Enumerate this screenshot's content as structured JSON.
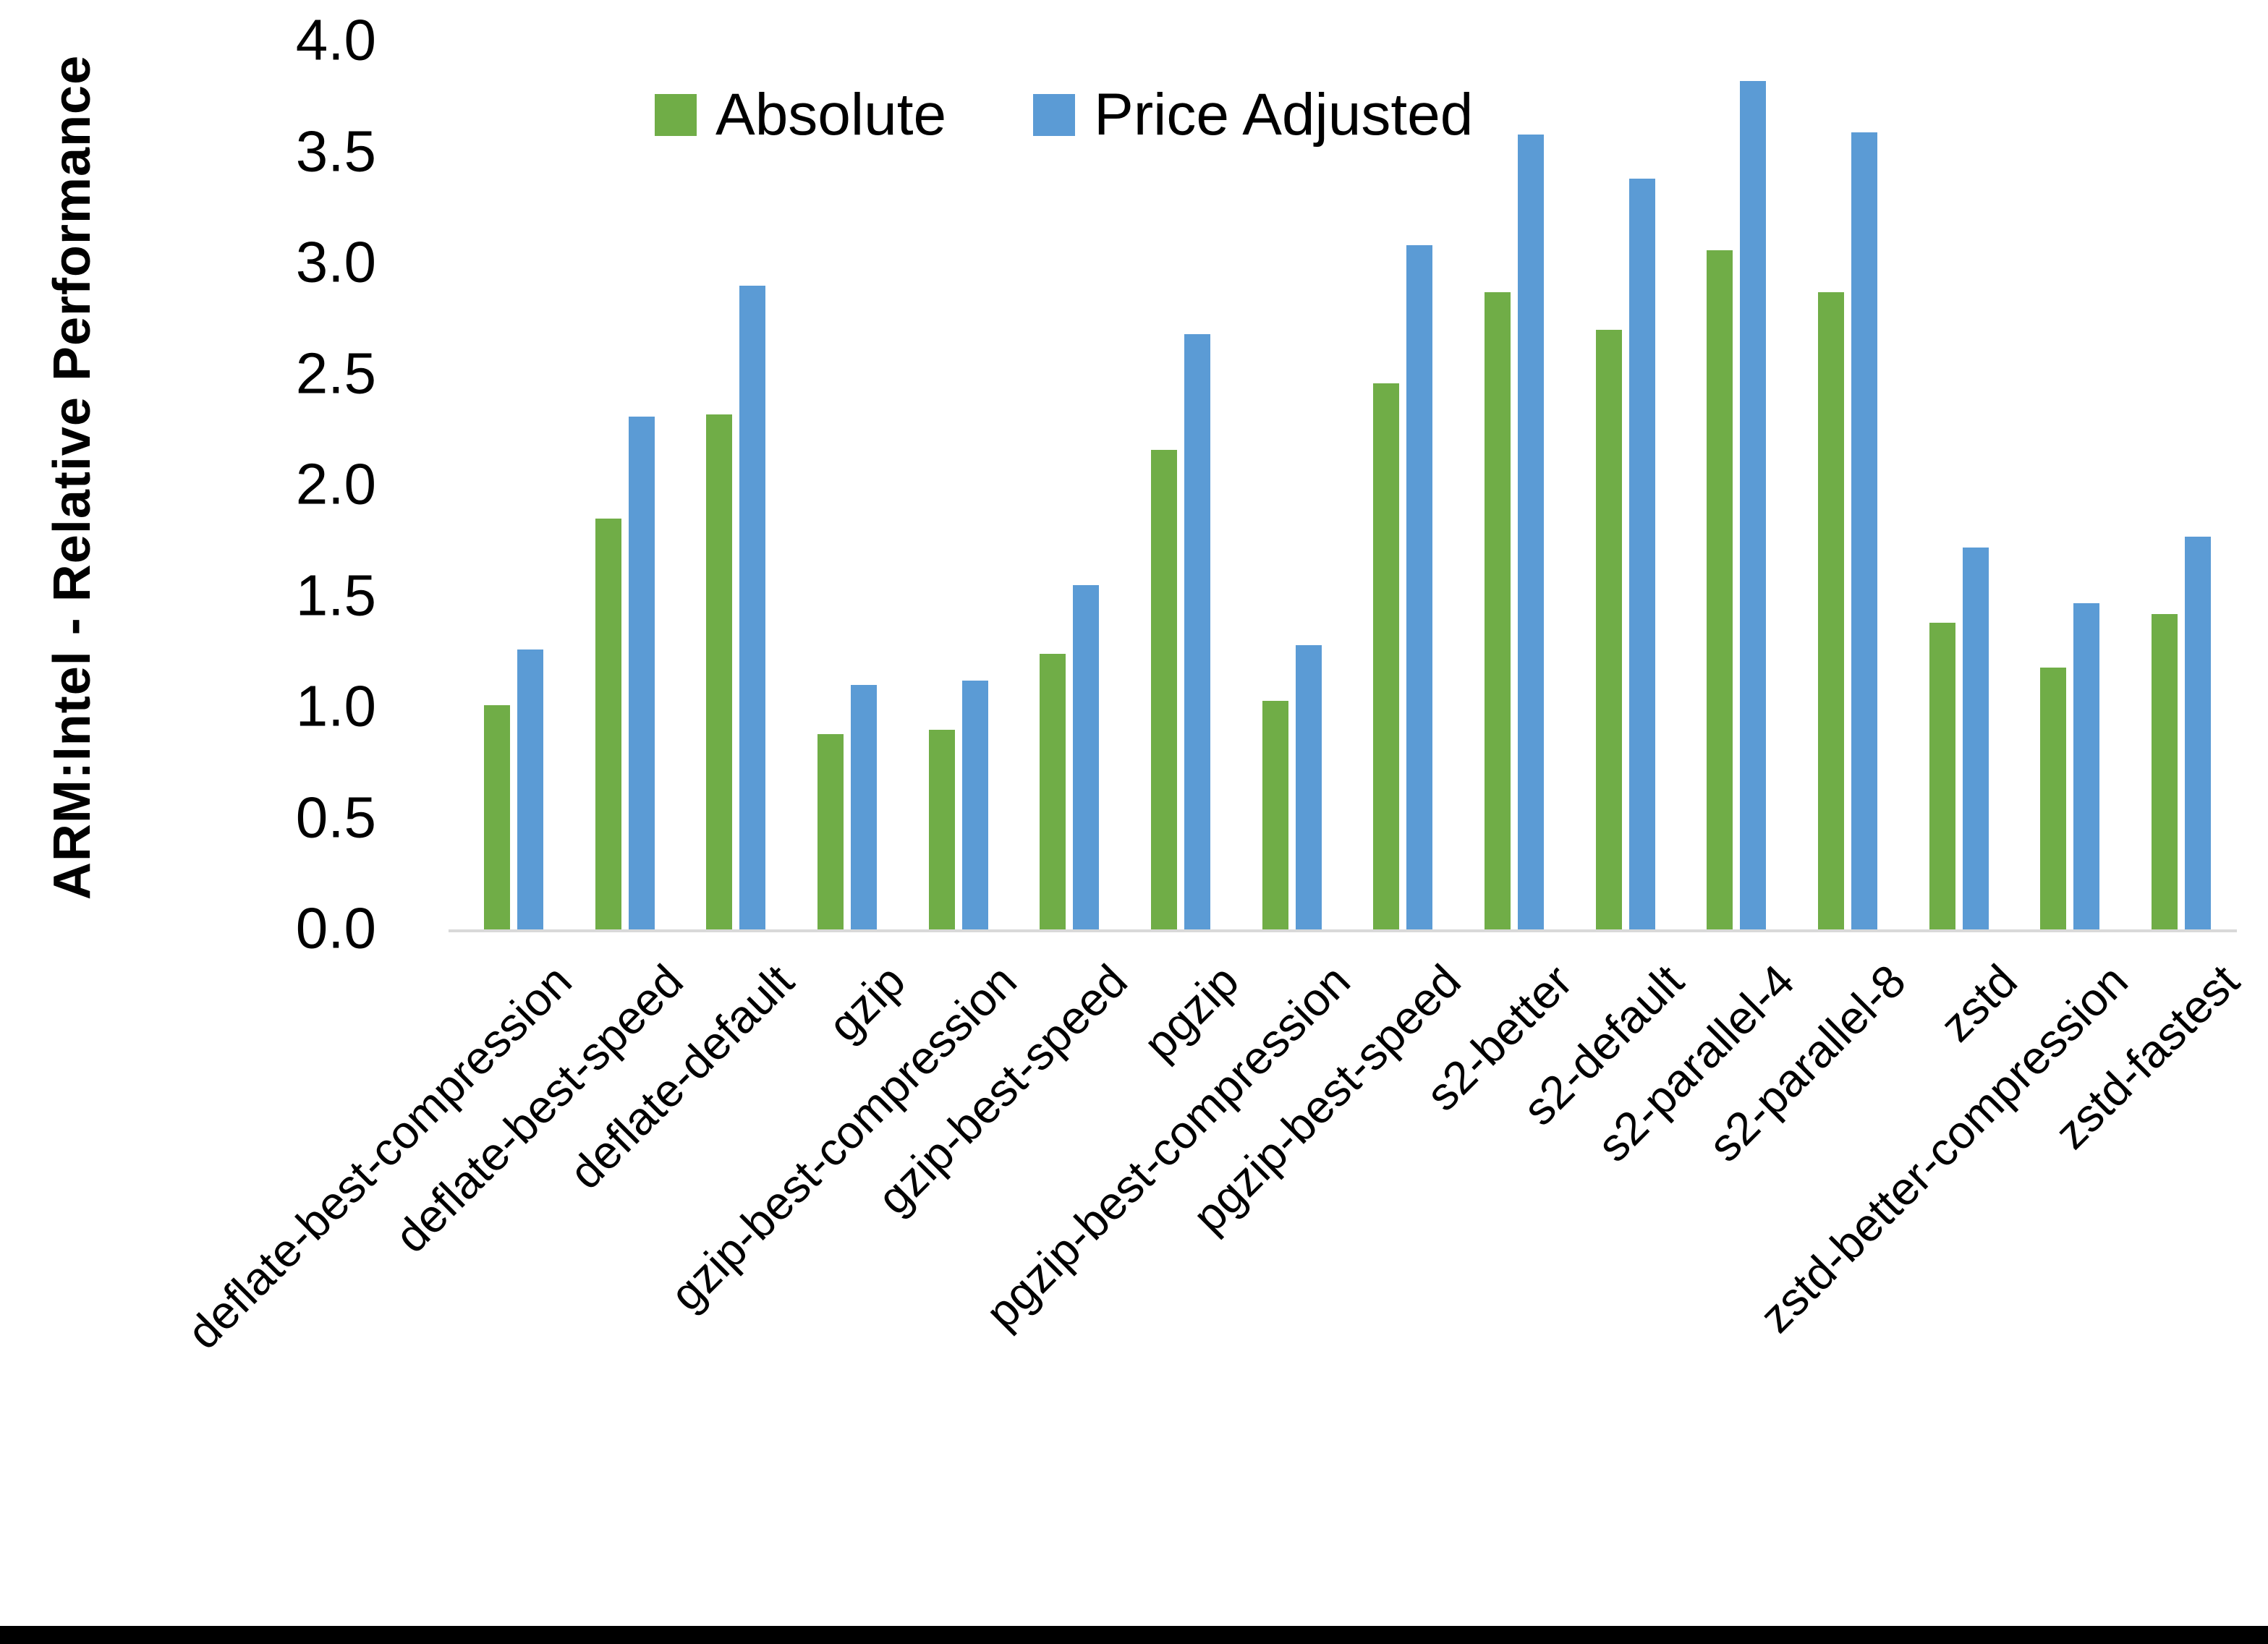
{
  "chart_data": {
    "type": "bar",
    "title": "",
    "ylabel": "ARM:Intel - Relative Performance",
    "xlabel": "",
    "ylim": [
      0.0,
      4.0
    ],
    "ytick_step": 0.5,
    "yticks": [
      "0.0",
      "0.5",
      "1.0",
      "1.5",
      "2.0",
      "2.5",
      "3.0",
      "3.5",
      "4.0"
    ],
    "grid": false,
    "legend_position": "top-center",
    "categories": [
      "deflate-best-compression",
      "deflate-best-speed",
      "deflate-default",
      "gzip",
      "gzip-best-compression",
      "gzip-best-speed",
      "pgzip",
      "pgzip-best-compression",
      "pgzip-best-speed",
      "s2-better",
      "s2-default",
      "s2-parallel-4",
      "s2-parallel-8",
      "zstd",
      "zstd-better-compression",
      "zstd-fastest"
    ],
    "series": [
      {
        "name": "Absolute",
        "color": "#70AD47",
        "values": [
          1.01,
          1.85,
          2.32,
          0.88,
          0.9,
          1.24,
          2.16,
          1.03,
          2.46,
          2.87,
          2.7,
          3.06,
          2.87,
          1.38,
          1.18,
          1.42
        ]
      },
      {
        "name": "Price Adjusted",
        "color": "#5B9BD5",
        "values": [
          1.26,
          2.31,
          2.9,
          1.1,
          1.12,
          1.55,
          2.68,
          1.28,
          3.08,
          3.58,
          3.38,
          3.82,
          3.59,
          1.72,
          1.47,
          1.77
        ]
      }
    ]
  },
  "legend": {
    "items": [
      {
        "label": "Absolute",
        "color": "#70AD47"
      },
      {
        "label": "Price Adjusted",
        "color": "#5B9BD5"
      }
    ]
  },
  "colors": {
    "background": "#FFFFFF",
    "axis_line": "#D9D9D9",
    "text": "#000000",
    "bottom_bar": "#000000"
  }
}
